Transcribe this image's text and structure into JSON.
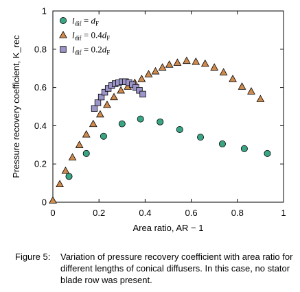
{
  "chart_data": {
    "type": "scatter",
    "title": "",
    "xlabel": "Area ratio, AR − 1",
    "ylabel": "Pressure recovery coefficient, K_rec",
    "xlim": [
      0,
      1
    ],
    "ylim": [
      0,
      1
    ],
    "x_ticks": [
      0,
      0.2,
      0.4,
      0.6,
      0.8,
      1
    ],
    "x_tick_labels": [
      "0",
      "0.2",
      "0.4",
      "0.6",
      "0.8",
      "1"
    ],
    "y_ticks": [
      0,
      0.2,
      0.4,
      0.6,
      0.8,
      1
    ],
    "y_tick_labels": [
      "0",
      "0.2",
      "0.4",
      "0.6",
      "0.8",
      "1"
    ],
    "grid": false,
    "legend_position": "top-left",
    "series": [
      {
        "name": "l_dif = d_F",
        "legend_main": "l",
        "legend_sub": "dif",
        "legend_eq": " = d",
        "legend_sub2": "F",
        "marker": "circle",
        "color": "#3aa584",
        "x": [
          0.07,
          0.145,
          0.22,
          0.3,
          0.38,
          0.465,
          0.55,
          0.64,
          0.735,
          0.83,
          0.93
        ],
        "y": [
          0.135,
          0.255,
          0.345,
          0.41,
          0.435,
          0.42,
          0.38,
          0.34,
          0.305,
          0.28,
          0.255
        ]
      },
      {
        "name": "l_dif = 0.4d_F",
        "legend_main": "l",
        "legend_sub": "dif",
        "legend_eq": " = 0.4d",
        "legend_sub2": "F",
        "marker": "triangle",
        "color": "#cf8a4e",
        "x": [
          0.0,
          0.03,
          0.055,
          0.085,
          0.115,
          0.145,
          0.175,
          0.205,
          0.235,
          0.265,
          0.295,
          0.325,
          0.355,
          0.385,
          0.415,
          0.445,
          0.475,
          0.505,
          0.54,
          0.58,
          0.62,
          0.66,
          0.7,
          0.74,
          0.78,
          0.82,
          0.86,
          0.9
        ],
        "y": [
          0.01,
          0.095,
          0.165,
          0.235,
          0.3,
          0.355,
          0.41,
          0.46,
          0.51,
          0.55,
          0.585,
          0.605,
          0.625,
          0.645,
          0.67,
          0.685,
          0.705,
          0.72,
          0.73,
          0.74,
          0.735,
          0.725,
          0.705,
          0.68,
          0.645,
          0.605,
          0.58,
          0.54
        ]
      },
      {
        "name": "l_dif = 0.2d_F",
        "legend_main": "l",
        "legend_sub": "dif",
        "legend_eq": " = 0.2d",
        "legend_sub2": "F",
        "marker": "square",
        "color": "#9b95c9",
        "x": [
          0.18,
          0.195,
          0.21,
          0.225,
          0.24,
          0.255,
          0.27,
          0.285,
          0.3,
          0.315,
          0.33,
          0.345,
          0.36,
          0.375,
          0.39
        ],
        "y": [
          0.49,
          0.52,
          0.55,
          0.575,
          0.595,
          0.61,
          0.62,
          0.625,
          0.63,
          0.63,
          0.625,
          0.615,
          0.6,
          0.585,
          0.565
        ]
      }
    ]
  },
  "caption": {
    "label": "Figure 5:",
    "text": "Variation of pressure recovery coefficient with area ratio for different lengths of conical diffusers. In this case, no stator blade row was present."
  }
}
